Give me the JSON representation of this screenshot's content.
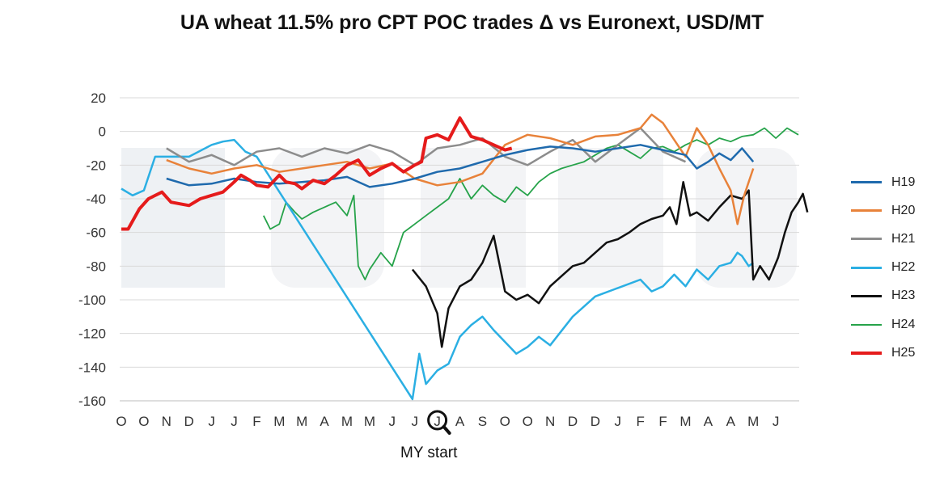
{
  "chart_data": {
    "type": "line",
    "title": "UA wheat 11.5% pro CPT POC trades Δ vs Euronext, USD/MT",
    "ylim": [
      -160,
      20
    ],
    "yticks": [
      20,
      0,
      -20,
      -40,
      -60,
      -80,
      -100,
      -120,
      -140,
      -160
    ],
    "x_tick_labels": [
      "O",
      "O",
      "N",
      "D",
      "J",
      "J",
      "F",
      "M",
      "M",
      "A",
      "M",
      "M",
      "J",
      "J",
      "J",
      "A",
      "S",
      "O",
      "O",
      "N",
      "D",
      "D",
      "J",
      "F",
      "F",
      "M",
      "A",
      "A",
      "M",
      "J"
    ],
    "x_range": [
      0,
      29.6
    ],
    "grid": true,
    "legend_position": "right",
    "annotation": {
      "text": "MY start",
      "x_index": 14
    },
    "series": [
      {
        "name": "H19",
        "color": "#1f6aad",
        "width": 2.5,
        "points": [
          [
            2,
            -28
          ],
          [
            3,
            -32
          ],
          [
            4,
            -31
          ],
          [
            5,
            -28
          ],
          [
            6,
            -30
          ],
          [
            7,
            -31
          ],
          [
            8,
            -30
          ],
          [
            9,
            -29
          ],
          [
            10,
            -27
          ],
          [
            11,
            -33
          ],
          [
            12,
            -31
          ],
          [
            13,
            -28
          ],
          [
            14,
            -24
          ],
          [
            15,
            -22
          ],
          [
            16,
            -18
          ],
          [
            17,
            -14
          ],
          [
            18,
            -11
          ],
          [
            19,
            -9
          ],
          [
            20,
            -10
          ],
          [
            21,
            -12
          ],
          [
            22,
            -10
          ],
          [
            23,
            -8
          ],
          [
            24,
            -11
          ],
          [
            25,
            -14
          ],
          [
            25.5,
            -22
          ],
          [
            26,
            -18
          ],
          [
            26.5,
            -13
          ],
          [
            27,
            -17
          ],
          [
            27.5,
            -10
          ],
          [
            28,
            -18
          ]
        ]
      },
      {
        "name": "H20",
        "color": "#e8823a",
        "width": 2.5,
        "points": [
          [
            2,
            -17
          ],
          [
            3,
            -22
          ],
          [
            4,
            -25
          ],
          [
            5,
            -22
          ],
          [
            6,
            -20
          ],
          [
            7,
            -24
          ],
          [
            8,
            -22
          ],
          [
            9,
            -20
          ],
          [
            10,
            -18
          ],
          [
            11,
            -22
          ],
          [
            12,
            -19
          ],
          [
            13,
            -28
          ],
          [
            14,
            -32
          ],
          [
            15,
            -30
          ],
          [
            16,
            -25
          ],
          [
            17,
            -8
          ],
          [
            18,
            -2
          ],
          [
            19,
            -4
          ],
          [
            20,
            -8
          ],
          [
            21,
            -3
          ],
          [
            22,
            -2
          ],
          [
            23,
            2
          ],
          [
            23.5,
            10
          ],
          [
            24,
            5
          ],
          [
            24.5,
            -5
          ],
          [
            25,
            -15
          ],
          [
            25.5,
            2
          ],
          [
            26,
            -8
          ],
          [
            26.5,
            -22
          ],
          [
            27,
            -35
          ],
          [
            27.3,
            -55
          ],
          [
            27.6,
            -38
          ],
          [
            28,
            -22
          ]
        ]
      },
      {
        "name": "H21",
        "color": "#8c8c8c",
        "width": 2.5,
        "points": [
          [
            2,
            -10
          ],
          [
            3,
            -18
          ],
          [
            4,
            -14
          ],
          [
            5,
            -20
          ],
          [
            6,
            -12
          ],
          [
            7,
            -10
          ],
          [
            8,
            -15
          ],
          [
            9,
            -10
          ],
          [
            10,
            -13
          ],
          [
            11,
            -8
          ],
          [
            12,
            -12
          ],
          [
            13,
            -20
          ],
          [
            14,
            -10
          ],
          [
            15,
            -8
          ],
          [
            16,
            -4
          ],
          [
            17,
            -15
          ],
          [
            18,
            -20
          ],
          [
            19,
            -12
          ],
          [
            20,
            -5
          ],
          [
            21,
            -18
          ],
          [
            22,
            -8
          ],
          [
            23,
            2
          ],
          [
            24,
            -12
          ],
          [
            25,
            -18
          ]
        ]
      },
      {
        "name": "H22",
        "color": "#2bafe3",
        "width": 2.5,
        "points": [
          [
            0,
            -34
          ],
          [
            0.5,
            -38
          ],
          [
            1,
            -35
          ],
          [
            1.5,
            -15
          ],
          [
            2,
            -15
          ],
          [
            3,
            -15
          ],
          [
            4,
            -8
          ],
          [
            4.5,
            -6
          ],
          [
            5,
            -5
          ],
          [
            5.5,
            -12
          ],
          [
            6,
            -15
          ],
          [
            12.9,
            -159
          ],
          [
            13.2,
            -132
          ],
          [
            13.5,
            -150
          ],
          [
            14,
            -142
          ],
          [
            14.5,
            -138
          ],
          [
            15,
            -122
          ],
          [
            15.5,
            -115
          ],
          [
            16,
            -110
          ],
          [
            16.5,
            -118
          ],
          [
            17,
            -125
          ],
          [
            17.5,
            -132
          ],
          [
            18,
            -128
          ],
          [
            18.5,
            -122
          ],
          [
            19,
            -127
          ],
          [
            20,
            -110
          ],
          [
            21,
            -98
          ],
          [
            22,
            -93
          ],
          [
            23,
            -88
          ],
          [
            23.5,
            -95
          ],
          [
            24,
            -92
          ],
          [
            24.5,
            -85
          ],
          [
            25,
            -92
          ],
          [
            25.5,
            -82
          ],
          [
            26,
            -88
          ],
          [
            26.5,
            -80
          ],
          [
            27,
            -78
          ],
          [
            27.3,
            -72
          ],
          [
            27.5,
            -74
          ],
          [
            27.8,
            -80
          ],
          [
            28,
            -78
          ]
        ]
      },
      {
        "name": "H23",
        "color": "#111111",
        "width": 2.5,
        "points": [
          [
            12.9,
            -82
          ],
          [
            13.5,
            -92
          ],
          [
            14,
            -108
          ],
          [
            14.2,
            -128
          ],
          [
            14.5,
            -105
          ],
          [
            15,
            -92
          ],
          [
            15.5,
            -88
          ],
          [
            16,
            -78
          ],
          [
            16.5,
            -62
          ],
          [
            17,
            -95
          ],
          [
            17.5,
            -100
          ],
          [
            18,
            -97
          ],
          [
            18.5,
            -102
          ],
          [
            19,
            -92
          ],
          [
            19.5,
            -86
          ],
          [
            20,
            -80
          ],
          [
            20.5,
            -78
          ],
          [
            21,
            -72
          ],
          [
            21.5,
            -66
          ],
          [
            22,
            -64
          ],
          [
            22.5,
            -60
          ],
          [
            23,
            -55
          ],
          [
            23.5,
            -52
          ],
          [
            24,
            -50
          ],
          [
            24.3,
            -45
          ],
          [
            24.6,
            -55
          ],
          [
            24.9,
            -30
          ],
          [
            25.2,
            -50
          ],
          [
            25.5,
            -48
          ],
          [
            26,
            -53
          ],
          [
            26.5,
            -45
          ],
          [
            27,
            -38
          ],
          [
            27.5,
            -40
          ],
          [
            27.8,
            -35
          ],
          [
            28,
            -88
          ],
          [
            28.3,
            -80
          ],
          [
            28.7,
            -88
          ],
          [
            29.1,
            -75
          ],
          [
            29.4,
            -60
          ],
          [
            29.7,
            -48
          ],
          [
            30,
            -42
          ],
          [
            30.2,
            -37
          ],
          [
            30.4,
            -48
          ]
        ]
      },
      {
        "name": "H24",
        "color": "#26a34a",
        "width": 1.8,
        "points": [
          [
            6.3,
            -50
          ],
          [
            6.6,
            -58
          ],
          [
            7,
            -55
          ],
          [
            7.3,
            -42
          ],
          [
            7.7,
            -48
          ],
          [
            8,
            -52
          ],
          [
            8.5,
            -48
          ],
          [
            9,
            -45
          ],
          [
            9.5,
            -42
          ],
          [
            10,
            -50
          ],
          [
            10.3,
            -38
          ],
          [
            10.5,
            -80
          ],
          [
            10.8,
            -88
          ],
          [
            11,
            -82
          ],
          [
            11.5,
            -72
          ],
          [
            12,
            -80
          ],
          [
            12.5,
            -60
          ],
          [
            13,
            -55
          ],
          [
            13.5,
            -50
          ],
          [
            14,
            -45
          ],
          [
            14.5,
            -40
          ],
          [
            15,
            -28
          ],
          [
            15.5,
            -40
          ],
          [
            16,
            -32
          ],
          [
            16.5,
            -38
          ],
          [
            17,
            -42
          ],
          [
            17.5,
            -33
          ],
          [
            18,
            -38
          ],
          [
            18.5,
            -30
          ],
          [
            19,
            -25
          ],
          [
            19.5,
            -22
          ],
          [
            20,
            -20
          ],
          [
            20.5,
            -18
          ],
          [
            21,
            -14
          ],
          [
            21.5,
            -10
          ],
          [
            22,
            -8
          ],
          [
            22.5,
            -12
          ],
          [
            23,
            -16
          ],
          [
            23.5,
            -10
          ],
          [
            24,
            -9
          ],
          [
            24.5,
            -12
          ],
          [
            25,
            -8
          ],
          [
            25.5,
            -5
          ],
          [
            26,
            -8
          ],
          [
            26.5,
            -4
          ],
          [
            27,
            -6
          ],
          [
            27.5,
            -3
          ],
          [
            28,
            -2
          ],
          [
            28.5,
            2
          ],
          [
            29,
            -4
          ],
          [
            29.5,
            2
          ],
          [
            30,
            -2
          ]
        ]
      },
      {
        "name": "H25",
        "color": "#e51b1b",
        "width": 4,
        "points": [
          [
            0,
            -58
          ],
          [
            0.3,
            -58
          ],
          [
            0.8,
            -46
          ],
          [
            1.2,
            -40
          ],
          [
            1.8,
            -36
          ],
          [
            2.2,
            -42
          ],
          [
            3,
            -44
          ],
          [
            3.5,
            -40
          ],
          [
            4,
            -38
          ],
          [
            4.5,
            -36
          ],
          [
            5,
            -30
          ],
          [
            5.3,
            -26
          ],
          [
            5.7,
            -29
          ],
          [
            6,
            -32
          ],
          [
            6.5,
            -33
          ],
          [
            7,
            -26
          ],
          [
            7.3,
            -30
          ],
          [
            7.7,
            -31
          ],
          [
            8,
            -34
          ],
          [
            8.5,
            -29
          ],
          [
            9,
            -31
          ],
          [
            9.5,
            -26
          ],
          [
            10,
            -20
          ],
          [
            10.5,
            -17
          ],
          [
            11,
            -26
          ],
          [
            11.5,
            -22
          ],
          [
            12,
            -19
          ],
          [
            12.5,
            -24
          ],
          [
            13,
            -20
          ],
          [
            13.3,
            -18
          ],
          [
            13.5,
            -4
          ],
          [
            14,
            -2
          ],
          [
            14.5,
            -5
          ],
          [
            15,
            8
          ],
          [
            15.5,
            -3
          ],
          [
            16,
            -5
          ],
          [
            16.5,
            -8
          ],
          [
            17,
            -11
          ],
          [
            17.3,
            -10
          ]
        ]
      }
    ]
  }
}
